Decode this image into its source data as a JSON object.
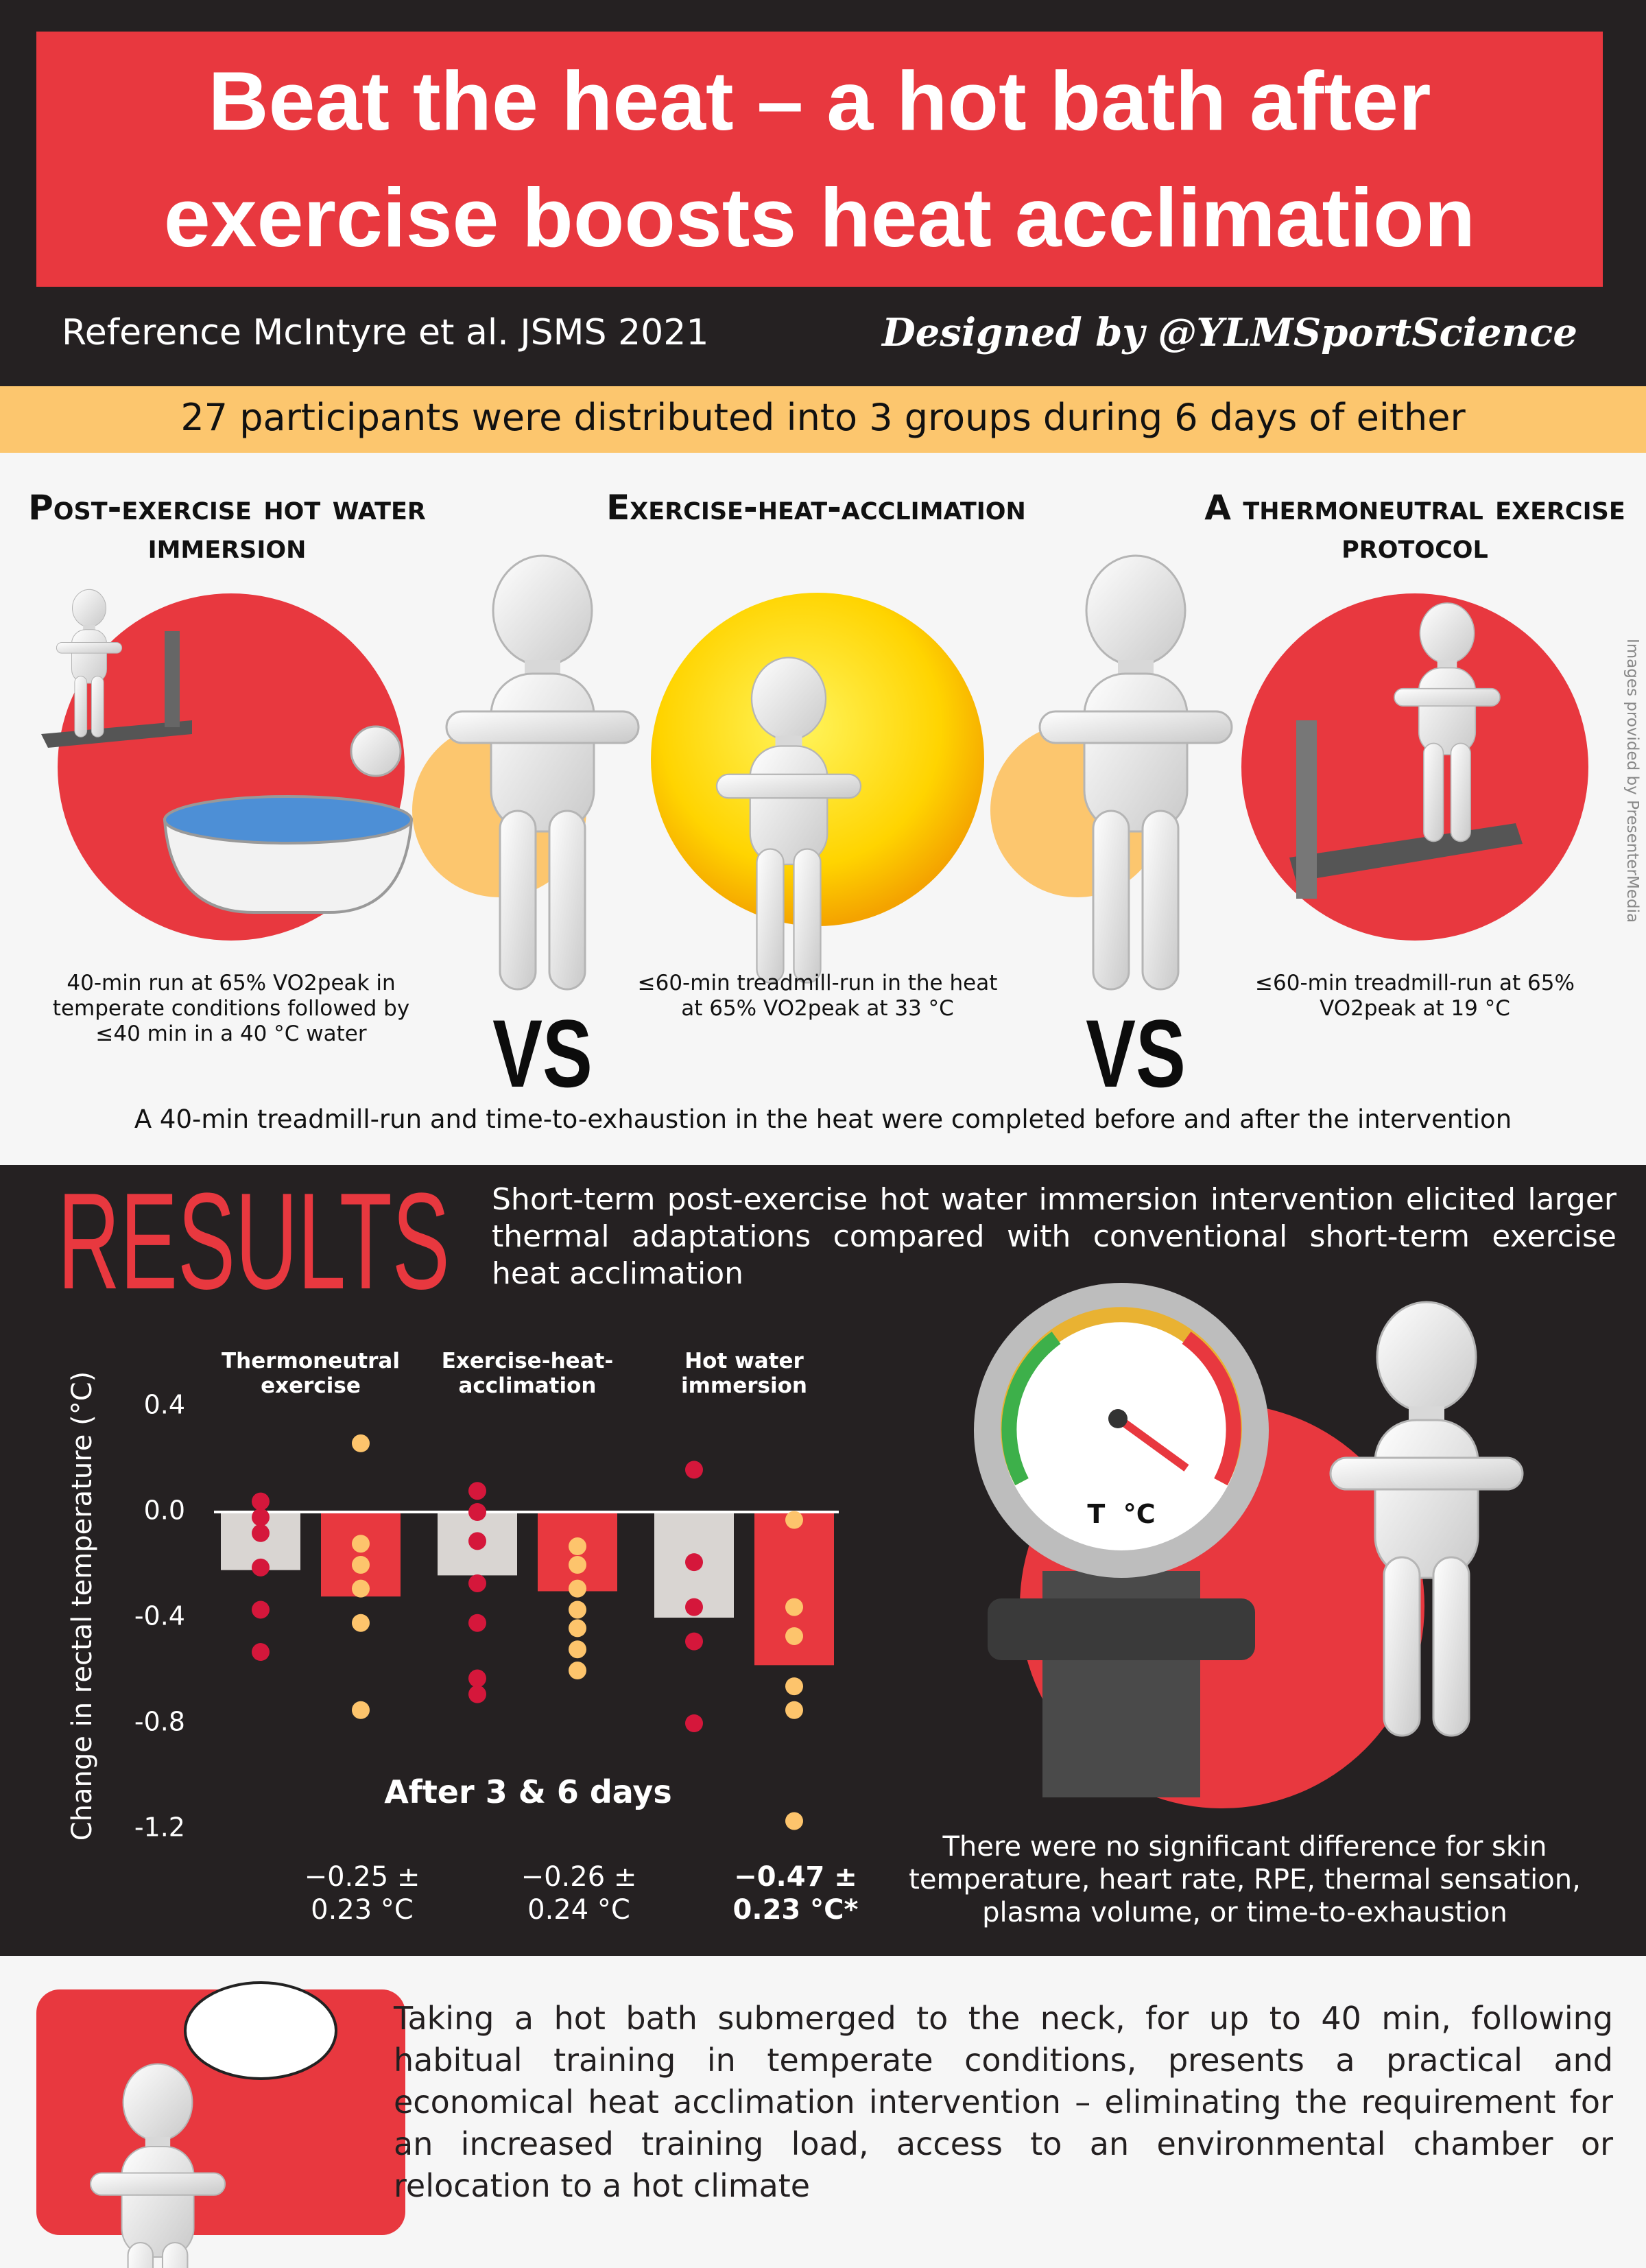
{
  "header": {
    "title": [
      "Beat the heat – a hot bath after",
      "exercise boosts heat acclimation"
    ],
    "reference": "Reference McIntyre et al. JSMS 2021",
    "credit": "Designed by @YLMSportScience"
  },
  "intro": "27 participants were distributed into 3 groups during 6 days of either",
  "groups": [
    {
      "title": "Post-exercise hot water immersion",
      "description": "40-min run at 65% VO2peak in temperate conditions followed by ≤40 min in a 40 °C water"
    },
    {
      "title": "Exercise-heat-acclimation",
      "description": "≤60-min treadmill-run in the heat at 65% VO2peak at 33 °C"
    },
    {
      "title": "A thermoneutral exercise protocol",
      "description": "≤60-min treadmill-run at 65% VO2peak at 19 °C"
    }
  ],
  "versus": [
    "VS",
    "VS"
  ],
  "protocol_note": "A 40-min treadmill-run and time-to-exhaustion in the heat were completed before and after the intervention",
  "image_credit": "Images provided by PresenterMedia",
  "results": {
    "heading": "RESULTS",
    "summary": "Short-term post-exercise hot water immersion intervention elicited larger thermal adaptations compared with conventional short-term exercise heat acclimation",
    "gauge_label": "T  °C",
    "note": "There were no significant difference for skin temperature, heart rate, RPE, thermal sensation, plasma volume, or time-to-exhaustion"
  },
  "chart_data": {
    "type": "bar",
    "y_label": "Change in rectal temperature (°C)",
    "categories": [
      "Thermoneutral exercise",
      "Exercise-heat-acclimation",
      "Hot water immersion"
    ],
    "series": [
      {
        "color": "#d9d5d2",
        "point_color": "#d5173b",
        "values": [
          -0.22,
          -0.24,
          -0.4
        ],
        "points": [
          [
            0.04,
            -0.02,
            -0.08,
            -0.21,
            -0.37,
            -0.53
          ],
          [
            0.08,
            0.0,
            -0.11,
            -0.27,
            -0.42,
            -0.63,
            -0.69
          ],
          [
            0.16,
            -0.19,
            -0.36,
            -0.49,
            -0.8
          ]
        ]
      },
      {
        "color": "#e8383f",
        "point_color": "#fdc46c",
        "values": [
          -0.32,
          -0.3,
          -0.58
        ],
        "points": [
          [
            0.26,
            -0.12,
            -0.2,
            -0.29,
            -0.42,
            -0.75
          ],
          [
            -0.13,
            -0.2,
            -0.29,
            -0.37,
            -0.44,
            -0.52,
            -0.6
          ],
          [
            -0.03,
            -0.36,
            -0.47,
            -0.66,
            -0.75,
            -1.17
          ]
        ]
      }
    ],
    "ylim": [
      -1.3,
      0.5
    ],
    "yticks": [
      0.4,
      {
        "value": 0,
        "label": "0.0"
      },
      -0.4,
      -0.8,
      -1.2
    ],
    "annotation": "After 3 & 6 days",
    "value_notes": [
      "−0.25 ± 0.23 °C",
      "−0.26 ± 0.24 °C",
      "−0.47 ± 0.23 °C*"
    ]
  },
  "conclusion": "Taking a hot bath submerged to the neck, for up to 40 min, following habitual training in temperate conditions, presents a practical and economical heat acclimation intervention – eliminating the requirement for an increased training load, access to an environmental chamber or relocation to a hot climate"
}
